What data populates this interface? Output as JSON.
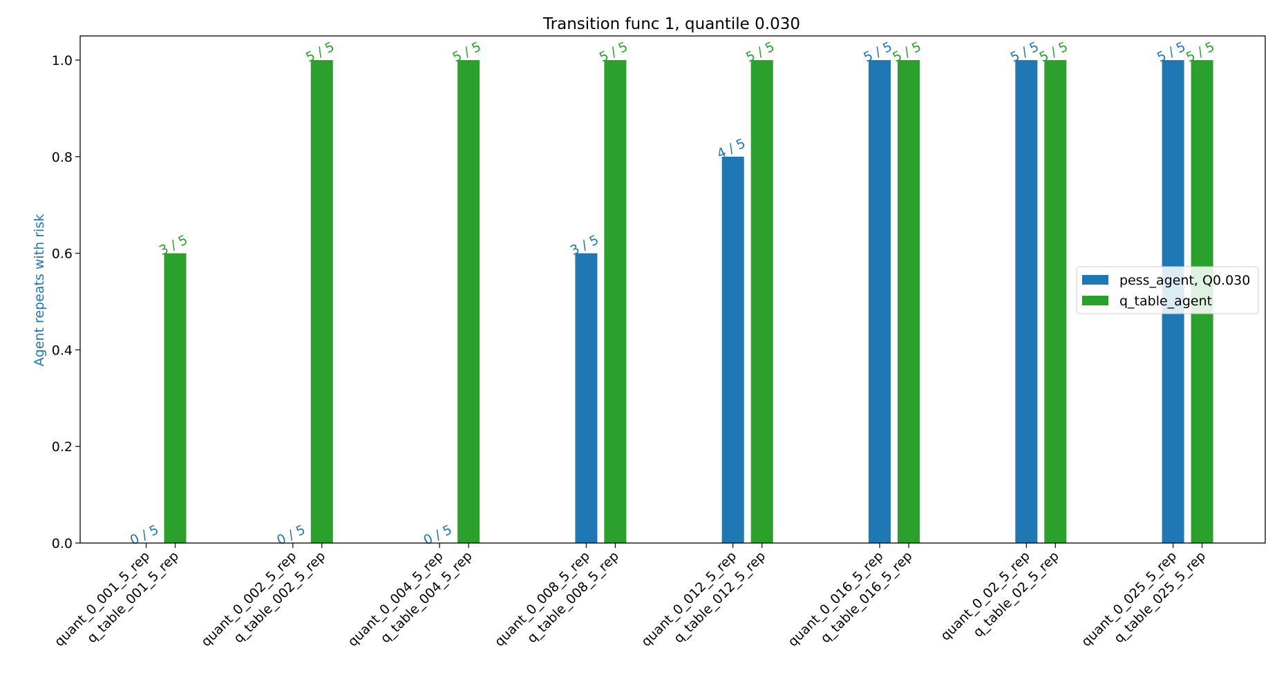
{
  "chart_data": {
    "type": "bar",
    "title": "Transition func 1, quantile 0.030",
    "xlabel": "",
    "ylabel": "Agent repeats with risk",
    "ylim": [
      0,
      1.05
    ],
    "yticks": [
      "0.0",
      "0.2",
      "0.4",
      "0.6",
      "0.8",
      "1.0"
    ],
    "grid": false,
    "legend_position": "center-right",
    "groups": [
      {
        "labels": [
          "quant_0_001_5_rep",
          "q_table_001_5_rep"
        ]
      },
      {
        "labels": [
          "quant_0_002_5_rep",
          "q_table_002_5_rep"
        ]
      },
      {
        "labels": [
          "quant_0_004_5_rep",
          "q_table_004_5_rep"
        ]
      },
      {
        "labels": [
          "quant_0_008_5_rep",
          "q_table_008_5_rep"
        ]
      },
      {
        "labels": [
          "quant_0_012_5_rep",
          "q_table_012_5_rep"
        ]
      },
      {
        "labels": [
          "quant_0_016_5_rep",
          "q_table_016_5_rep"
        ]
      },
      {
        "labels": [
          "quant_0_02_5_rep",
          "q_table_02_5_rep"
        ]
      },
      {
        "labels": [
          "quant_0_025_5_rep",
          "q_table_025_5_rep"
        ]
      }
    ],
    "series": [
      {
        "name": "pess_agent, Q0.030",
        "color": "#1f77b4",
        "values": [
          0.0,
          0.0,
          0.0,
          0.6,
          0.8,
          1.0,
          1.0,
          1.0
        ],
        "labels": [
          "0 / 5",
          "0 / 5",
          "0 / 5",
          "3 / 5",
          "4 / 5",
          "5 / 5",
          "5 / 5",
          "5 / 5"
        ]
      },
      {
        "name": "q_table_agent",
        "color": "#2ca02c",
        "values": [
          0.6,
          1.0,
          1.0,
          1.0,
          1.0,
          1.0,
          1.0,
          1.0
        ],
        "labels": [
          "3 / 5",
          "5 / 5",
          "5 / 5",
          "5 / 5",
          "5 / 5",
          "5 / 5",
          "5 / 5",
          "5 / 5"
        ]
      }
    ]
  }
}
